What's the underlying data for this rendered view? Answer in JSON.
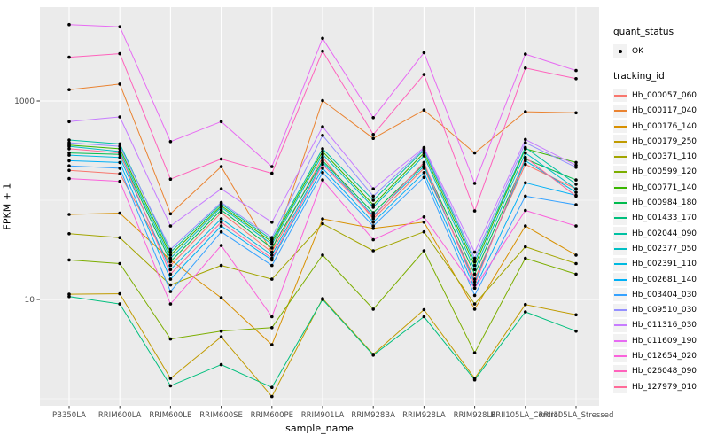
{
  "figure": {
    "y_axis_title": "FPKM + 1",
    "x_axis_title": "sample_name"
  },
  "legend": {
    "quant_status": {
      "title": "quant_status",
      "items": [
        {
          "label": "OK",
          "marker": "black-point"
        }
      ]
    },
    "tracking_id": {
      "title": "tracking_id"
    }
  },
  "chart_data": {
    "type": "line",
    "title": "",
    "xlabel": "sample_name",
    "ylabel": "FPKM + 1",
    "y_scale": "log10",
    "ylim": [
      0.85,
      9000
    ],
    "y_tick_labels": [
      "1000",
      "10"
    ],
    "y_tick_values": [
      1000,
      10
    ],
    "y_gridlines_major": [
      1000,
      10
    ],
    "y_gridlines_minor": [
      100,
      1
    ],
    "grid": "on",
    "legend_position": "right",
    "panel_bg": "#EBEBEB",
    "grid_color": "#FFFFFF",
    "point_color": "#000000",
    "axis_text_color": "#4D4D4D",
    "categories": [
      "PB350LA",
      "RRIM600LA",
      "RRIM600LE",
      "RRIM600SE",
      "RRIM600PE",
      "RRIM901LA",
      "RRIM928BA",
      "RRIM928LA",
      "RRIM928LE",
      "RRII105LA_Control",
      "RRII105LA_Stressed"
    ],
    "series": [
      {
        "tracking_id": "Hb_000057_060",
        "quant_status": "OK",
        "color": "#F8766D",
        "values": [
          200,
          185,
          22,
          75,
          30,
          270,
          65,
          210,
          16,
          230,
          130
        ]
      },
      {
        "tracking_id": "Hb_000117_040",
        "quant_status": "OK",
        "color": "#EA8331",
        "values": [
          1300,
          1480,
          73,
          218,
          30,
          1010,
          420,
          810,
          300,
          780,
          760
        ]
      },
      {
        "tracking_id": "Hb_000176_140",
        "quant_status": "OK",
        "color": "#D89000",
        "values": [
          72,
          74,
          25,
          10.4,
          3.5,
          65,
          52,
          60,
          8,
          55,
          28
        ]
      },
      {
        "tracking_id": "Hb_000179_250",
        "quant_status": "OK",
        "color": "#C09B00",
        "values": [
          11.3,
          11.4,
          1.6,
          4.2,
          1.05,
          10.2,
          2.8,
          7.9,
          1.6,
          8.9,
          7
        ]
      },
      {
        "tracking_id": "Hb_000371_110",
        "quant_status": "OK",
        "color": "#A3A500",
        "values": [
          46,
          42,
          14,
          22,
          16,
          58,
          31,
          48,
          9,
          34,
          23
        ]
      },
      {
        "tracking_id": "Hb_000599_120",
        "quant_status": "OK",
        "color": "#7CAE00",
        "values": [
          25,
          23,
          4,
          4.8,
          5.2,
          28,
          8,
          31,
          2.9,
          26,
          18
        ]
      },
      {
        "tracking_id": "Hb_000771_140",
        "quant_status": "OK",
        "color": "#39B600",
        "values": [
          360,
          330,
          28,
          88,
          38,
          310,
          90,
          300,
          22,
          330,
          240
        ]
      },
      {
        "tracking_id": "Hb_000984_180",
        "quant_status": "OK",
        "color": "#00BB4E",
        "values": [
          300,
          290,
          24,
          80,
          33,
          250,
          75,
          230,
          18,
          260,
          160
        ]
      },
      {
        "tracking_id": "Hb_001433_170",
        "quant_status": "OK",
        "color": "#00BF7D",
        "values": [
          10.7,
          9,
          1.35,
          2.2,
          1.3,
          10,
          2.75,
          6.7,
          1.55,
          7.5,
          4.8
        ]
      },
      {
        "tracking_id": "Hb_002044_090",
        "quant_status": "OK",
        "color": "#00C1A3",
        "values": [
          405,
          370,
          30,
          92,
          40,
          330,
          100,
          320,
          24,
          340,
          145
        ]
      },
      {
        "tracking_id": "Hb_002377_050",
        "quant_status": "OK",
        "color": "#00BFC4",
        "values": [
          350,
          310,
          26,
          85,
          36,
          290,
          85,
          280,
          20,
          300,
          130
        ]
      },
      {
        "tracking_id": "Hb_002391_110",
        "quant_status": "OK",
        "color": "#00BAE0",
        "values": [
          285,
          270,
          20,
          65,
          28,
          240,
          70,
          220,
          15,
          250,
          120
        ]
      },
      {
        "tracking_id": "Hb_002681_140",
        "quant_status": "OK",
        "color": "#00B0F6",
        "values": [
          250,
          240,
          16,
          55,
          25,
          210,
          60,
          190,
          13,
          150,
          112
        ]
      },
      {
        "tracking_id": "Hb_003404_030",
        "quant_status": "OK",
        "color": "#35A2FF",
        "values": [
          222,
          210,
          12,
          48,
          22,
          190,
          55,
          170,
          11,
          110,
          90
        ]
      },
      {
        "tracking_id": "Hb_009510_030",
        "quant_status": "OK",
        "color": "#9590FF",
        "values": [
          380,
          350,
          32,
          95,
          42,
          450,
          110,
          330,
          26,
          380,
          215
        ]
      },
      {
        "tracking_id": "Hb_011316_030",
        "quant_status": "OK",
        "color": "#C77CFF",
        "values": [
          620,
          690,
          55,
          130,
          60,
          550,
          130,
          340,
          30,
          410,
          225
        ]
      },
      {
        "tracking_id": "Hb_011609_190",
        "quant_status": "OK",
        "color": "#E76BF3",
        "values": [
          5900,
          5600,
          390,
          620,
          218,
          4280,
          680,
          3070,
          148,
          2970,
          2030
        ]
      },
      {
        "tracking_id": "Hb_012654_020",
        "quant_status": "OK",
        "color": "#FA62DB",
        "values": [
          165,
          155,
          9,
          35,
          6.7,
          160,
          40,
          68,
          13,
          79,
          55
        ]
      },
      {
        "tracking_id": "Hb_026048_090",
        "quant_status": "OK",
        "color": "#FF62BC",
        "values": [
          2760,
          3000,
          163,
          260,
          187,
          3180,
          460,
          1850,
          78,
          2150,
          1680
        ]
      },
      {
        "tracking_id": "Hb_127979_010",
        "quant_status": "OK",
        "color": "#FF6A98",
        "values": [
          330,
          300,
          18,
          60,
          26,
          230,
          68,
          240,
          14,
          270,
          110
        ]
      }
    ]
  }
}
